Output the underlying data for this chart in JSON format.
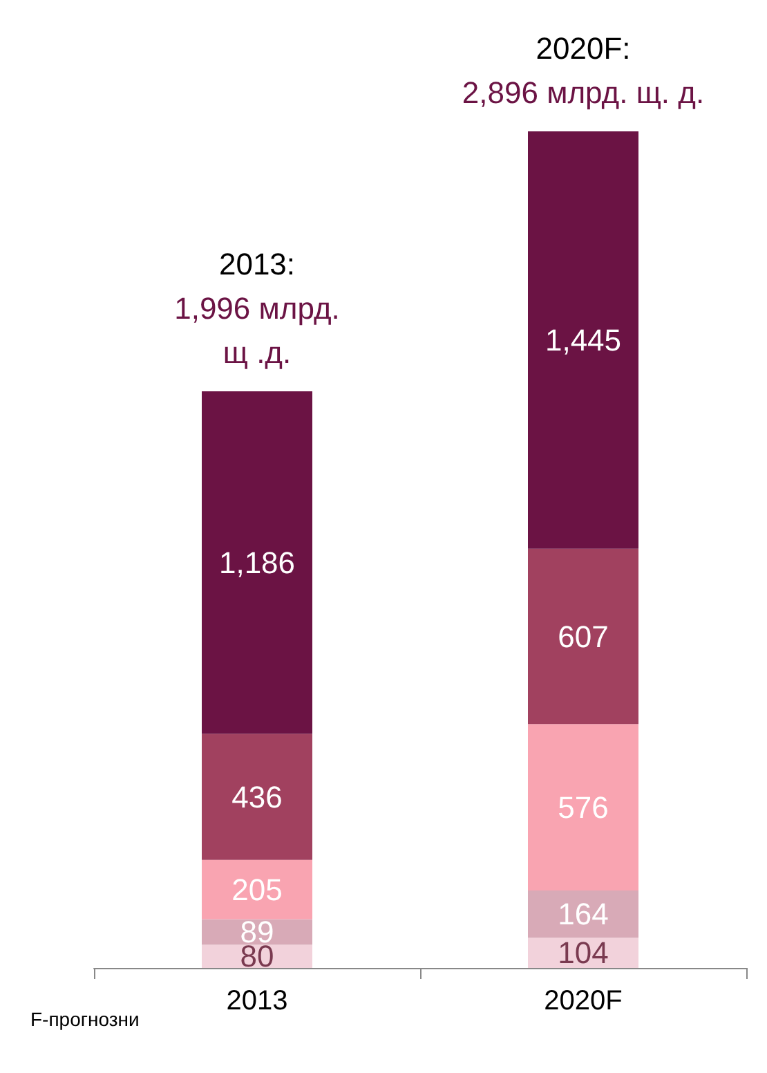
{
  "chart_data": {
    "type": "bar",
    "stacked": true,
    "categories": [
      "2013",
      "2020F"
    ],
    "series": [
      {
        "color": "#f2d2db",
        "values": [
          80,
          104
        ],
        "value_labels": [
          "80",
          "104"
        ]
      },
      {
        "color": "#d8aab7",
        "values": [
          89,
          164
        ],
        "value_labels": [
          "89",
          "164"
        ]
      },
      {
        "color": "#f9a4b1",
        "values": [
          205,
          576
        ],
        "value_labels": [
          "205",
          "576"
        ]
      },
      {
        "color": "#a1415f",
        "values": [
          436,
          607
        ],
        "value_labels": [
          "436",
          "607"
        ]
      },
      {
        "color": "#6b1344",
        "values": [
          1186,
          1445
        ],
        "value_labels": [
          "1,186",
          "1,445"
        ]
      }
    ],
    "totals": [
      "2013:\n1,996 млрд.\nщ .д.",
      "2020F:\n2,896 млрд. щ. д."
    ],
    "annotations": [
      "F-прогнозни"
    ]
  }
}
